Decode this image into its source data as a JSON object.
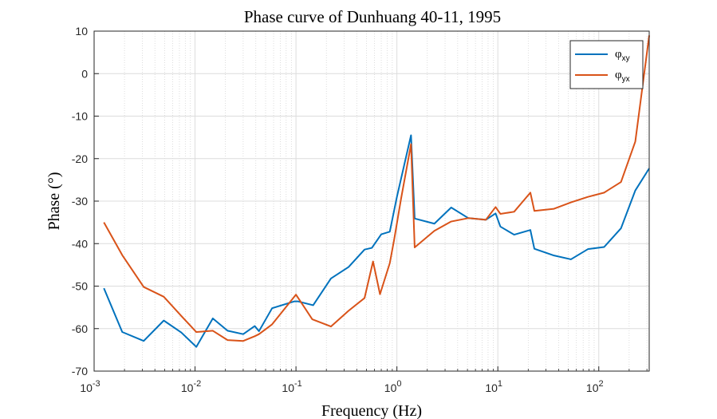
{
  "chart_data": {
    "type": "line",
    "title": "Phase curve of Dunhuang 40-11, 1995",
    "xlabel": "Frequency (Hz)",
    "ylabel": "Phase (°)",
    "xscale": "log",
    "xlim": [
      0.001,
      316
    ],
    "ylim": [
      -70,
      10
    ],
    "grid": true,
    "minor_grid_x": true,
    "legend_position": "top-right",
    "x_tick_labels": [
      "10",
      "10",
      "10",
      "10",
      "10",
      "10"
    ],
    "x_tick_exponents": [
      "-3",
      "-2",
      "-1",
      "0",
      "1",
      "2"
    ],
    "y_ticks": [
      10,
      0,
      -10,
      -20,
      -30,
      -40,
      -50,
      -60,
      -70
    ],
    "series": [
      {
        "name": "φ",
        "name_sub": "xy",
        "color": "#0072BD",
        "x": [
          0.00125,
          0.0019,
          0.0031,
          0.0049,
          0.0073,
          0.0103,
          0.015,
          0.021,
          0.03,
          0.039,
          0.043,
          0.058,
          0.096,
          0.105,
          0.148,
          0.222,
          0.332,
          0.478,
          0.565,
          0.7,
          0.85,
          1.0,
          1.38,
          1.5,
          2.35,
          3.45,
          5.1,
          7.6,
          9.5,
          10.6,
          14.5,
          21.0,
          23.0,
          36.0,
          53.0,
          78.0,
          113.0,
          166.0,
          230.0,
          316.0
        ],
        "y": [
          -50.5,
          -60.8,
          -62.9,
          -58.1,
          -60.9,
          -64.3,
          -57.6,
          -60.5,
          -61.3,
          -59.4,
          -60.6,
          -55.2,
          -53.6,
          -53.6,
          -54.5,
          -48.2,
          -45.5,
          -41.4,
          -41.0,
          -37.8,
          -37.2,
          -29.0,
          -14.5,
          -34.1,
          -35.3,
          -31.5,
          -34.0,
          -34.4,
          -32.9,
          -36.0,
          -37.9,
          -36.8,
          -41.2,
          -42.8,
          -43.7,
          -41.3,
          -40.8,
          -36.4,
          -27.5,
          -22.3
        ]
      },
      {
        "name": "φ",
        "name_sub": "yx",
        "color": "#D95319",
        "x": [
          0.00125,
          0.0019,
          0.0031,
          0.0049,
          0.0073,
          0.0103,
          0.015,
          0.021,
          0.03,
          0.039,
          0.043,
          0.058,
          0.1,
          0.145,
          0.222,
          0.332,
          0.478,
          0.58,
          0.68,
          0.85,
          0.94,
          1.1,
          1.38,
          1.5,
          2.35,
          3.45,
          5.1,
          7.6,
          9.5,
          10.6,
          14.5,
          21.0,
          23.0,
          36.0,
          53.0,
          78.0,
          113.0,
          166.0,
          230.0,
          316.0
        ],
        "y": [
          -35.0,
          -42.7,
          -50.2,
          -52.5,
          -57.0,
          -60.8,
          -60.5,
          -62.7,
          -62.9,
          -61.8,
          -61.3,
          -59.0,
          -52.0,
          -57.8,
          -59.5,
          -55.8,
          -52.8,
          -44.2,
          -51.9,
          -44.6,
          -39.0,
          -29.4,
          -16.6,
          -40.9,
          -37.0,
          -34.8,
          -34.0,
          -34.4,
          -31.4,
          -33.0,
          -32.5,
          -28.0,
          -32.3,
          -31.8,
          -30.3,
          -29.0,
          -28.0,
          -25.5,
          -16.0,
          9.0
        ]
      }
    ]
  }
}
